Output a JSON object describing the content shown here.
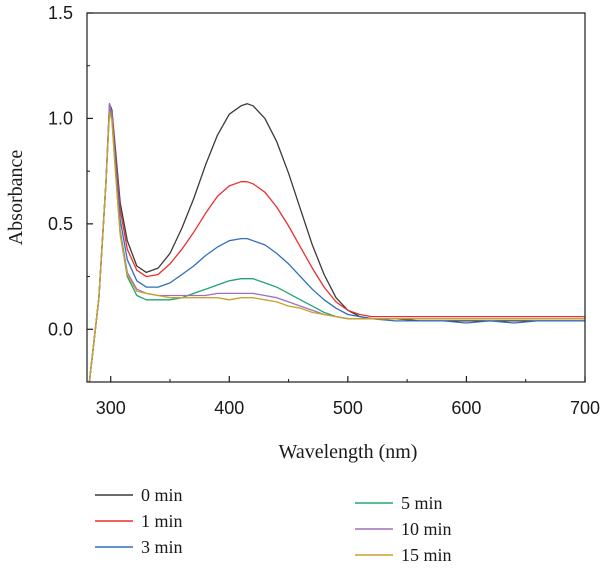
{
  "chart_data": {
    "type": "line",
    "xlabel": "Wavelength (nm)",
    "ylabel": "Absorbance",
    "xlim": [
      280,
      700
    ],
    "ylim": [
      -0.25,
      1.5
    ],
    "x_ticks": [
      300,
      400,
      500,
      600,
      700
    ],
    "x_tick_labels": [
      "300",
      "400",
      "500",
      "600",
      "700"
    ],
    "y_ticks": [
      0.0,
      0.5,
      1.0,
      1.5
    ],
    "y_tick_labels": [
      "0.0",
      "0.5",
      "1.0",
      "1.5"
    ],
    "grid": false,
    "legend_position": "bottom",
    "series": [
      {
        "name": "0 min",
        "color": "#3a3a3a",
        "x": [
          282,
          290,
          296,
          299,
          301,
          304,
          308,
          314,
          322,
          330,
          340,
          350,
          360,
          370,
          380,
          390,
          400,
          410,
          415,
          420,
          430,
          440,
          450,
          460,
          470,
          480,
          490,
          500,
          510,
          520,
          540,
          560,
          580,
          600,
          620,
          640,
          660,
          680,
          700
        ],
        "y": [
          -0.25,
          0.15,
          0.7,
          1.07,
          1.04,
          0.85,
          0.6,
          0.42,
          0.3,
          0.27,
          0.29,
          0.36,
          0.48,
          0.62,
          0.78,
          0.92,
          1.02,
          1.06,
          1.07,
          1.06,
          1.0,
          0.89,
          0.74,
          0.57,
          0.4,
          0.26,
          0.15,
          0.09,
          0.06,
          0.05,
          0.05,
          0.04,
          0.04,
          0.04,
          0.04,
          0.04,
          0.04,
          0.04,
          0.04
        ]
      },
      {
        "name": "1 min",
        "color": "#e8312e",
        "x": [
          282,
          290,
          296,
          299,
          301,
          304,
          308,
          314,
          322,
          330,
          340,
          350,
          360,
          370,
          380,
          390,
          400,
          410,
          415,
          420,
          430,
          440,
          450,
          460,
          470,
          480,
          490,
          500,
          510,
          520,
          540,
          560,
          580,
          600,
          620,
          640,
          660,
          680,
          700
        ],
        "y": [
          -0.25,
          0.15,
          0.7,
          1.06,
          1.03,
          0.83,
          0.57,
          0.38,
          0.28,
          0.25,
          0.26,
          0.31,
          0.38,
          0.46,
          0.55,
          0.63,
          0.68,
          0.7,
          0.7,
          0.69,
          0.65,
          0.58,
          0.49,
          0.39,
          0.29,
          0.2,
          0.13,
          0.09,
          0.07,
          0.06,
          0.06,
          0.06,
          0.06,
          0.06,
          0.06,
          0.06,
          0.06,
          0.06,
          0.06
        ]
      },
      {
        "name": "3 min",
        "color": "#2f6fbf",
        "x": [
          282,
          290,
          296,
          299,
          301,
          304,
          308,
          314,
          322,
          330,
          340,
          350,
          360,
          370,
          380,
          390,
          400,
          410,
          415,
          420,
          430,
          440,
          450,
          460,
          470,
          480,
          490,
          500,
          510,
          520,
          540,
          560,
          580,
          600,
          620,
          640,
          660,
          680,
          700
        ],
        "y": [
          -0.25,
          0.15,
          0.7,
          1.05,
          1.02,
          0.8,
          0.52,
          0.33,
          0.23,
          0.2,
          0.2,
          0.22,
          0.26,
          0.3,
          0.35,
          0.39,
          0.42,
          0.43,
          0.43,
          0.42,
          0.4,
          0.36,
          0.31,
          0.25,
          0.19,
          0.14,
          0.1,
          0.07,
          0.06,
          0.05,
          0.04,
          0.04,
          0.04,
          0.03,
          0.04,
          0.03,
          0.04,
          0.04,
          0.04
        ]
      },
      {
        "name": "5 min",
        "color": "#22a56f",
        "x": [
          282,
          290,
          296,
          299,
          301,
          304,
          308,
          314,
          322,
          330,
          340,
          350,
          360,
          370,
          380,
          390,
          400,
          410,
          415,
          420,
          430,
          440,
          450,
          460,
          470,
          480,
          490,
          500,
          510,
          520,
          540,
          560,
          580,
          600,
          620,
          640,
          660,
          680,
          700
        ],
        "y": [
          -0.25,
          0.15,
          0.7,
          1.04,
          1.0,
          0.75,
          0.45,
          0.25,
          0.16,
          0.14,
          0.14,
          0.14,
          0.15,
          0.17,
          0.19,
          0.21,
          0.23,
          0.24,
          0.24,
          0.24,
          0.22,
          0.2,
          0.17,
          0.14,
          0.11,
          0.08,
          0.06,
          0.05,
          0.05,
          0.05,
          0.05,
          0.05,
          0.05,
          0.05,
          0.05,
          0.05,
          0.05,
          0.05,
          0.05
        ]
      },
      {
        "name": "10 min",
        "color": "#9e6fbf",
        "x": [
          282,
          290,
          296,
          299,
          301,
          304,
          308,
          314,
          322,
          330,
          340,
          350,
          360,
          370,
          380,
          390,
          400,
          410,
          415,
          420,
          430,
          440,
          450,
          460,
          470,
          480,
          490,
          500,
          510,
          520,
          540,
          560,
          580,
          600,
          620,
          640,
          660,
          680,
          700
        ],
        "y": [
          -0.25,
          0.15,
          0.7,
          1.07,
          1.02,
          0.76,
          0.47,
          0.27,
          0.19,
          0.17,
          0.16,
          0.16,
          0.16,
          0.16,
          0.16,
          0.17,
          0.17,
          0.17,
          0.17,
          0.17,
          0.16,
          0.15,
          0.13,
          0.11,
          0.09,
          0.07,
          0.06,
          0.05,
          0.05,
          0.05,
          0.05,
          0.05,
          0.05,
          0.05,
          0.05,
          0.05,
          0.05,
          0.05,
          0.05
        ]
      },
      {
        "name": "15 min",
        "color": "#c9a227",
        "x": [
          282,
          290,
          296,
          299,
          301,
          304,
          308,
          314,
          322,
          330,
          340,
          350,
          360,
          370,
          380,
          390,
          400,
          410,
          415,
          420,
          430,
          440,
          450,
          460,
          470,
          480,
          490,
          500,
          510,
          520,
          540,
          560,
          580,
          600,
          620,
          640,
          660,
          680,
          700
        ],
        "y": [
          -0.25,
          0.15,
          0.7,
          1.03,
          0.99,
          0.74,
          0.45,
          0.26,
          0.18,
          0.17,
          0.16,
          0.15,
          0.15,
          0.15,
          0.15,
          0.15,
          0.14,
          0.15,
          0.15,
          0.15,
          0.14,
          0.13,
          0.11,
          0.1,
          0.08,
          0.07,
          0.06,
          0.05,
          0.05,
          0.05,
          0.05,
          0.05,
          0.05,
          0.05,
          0.05,
          0.05,
          0.05,
          0.05,
          0.05
        ]
      }
    ]
  }
}
